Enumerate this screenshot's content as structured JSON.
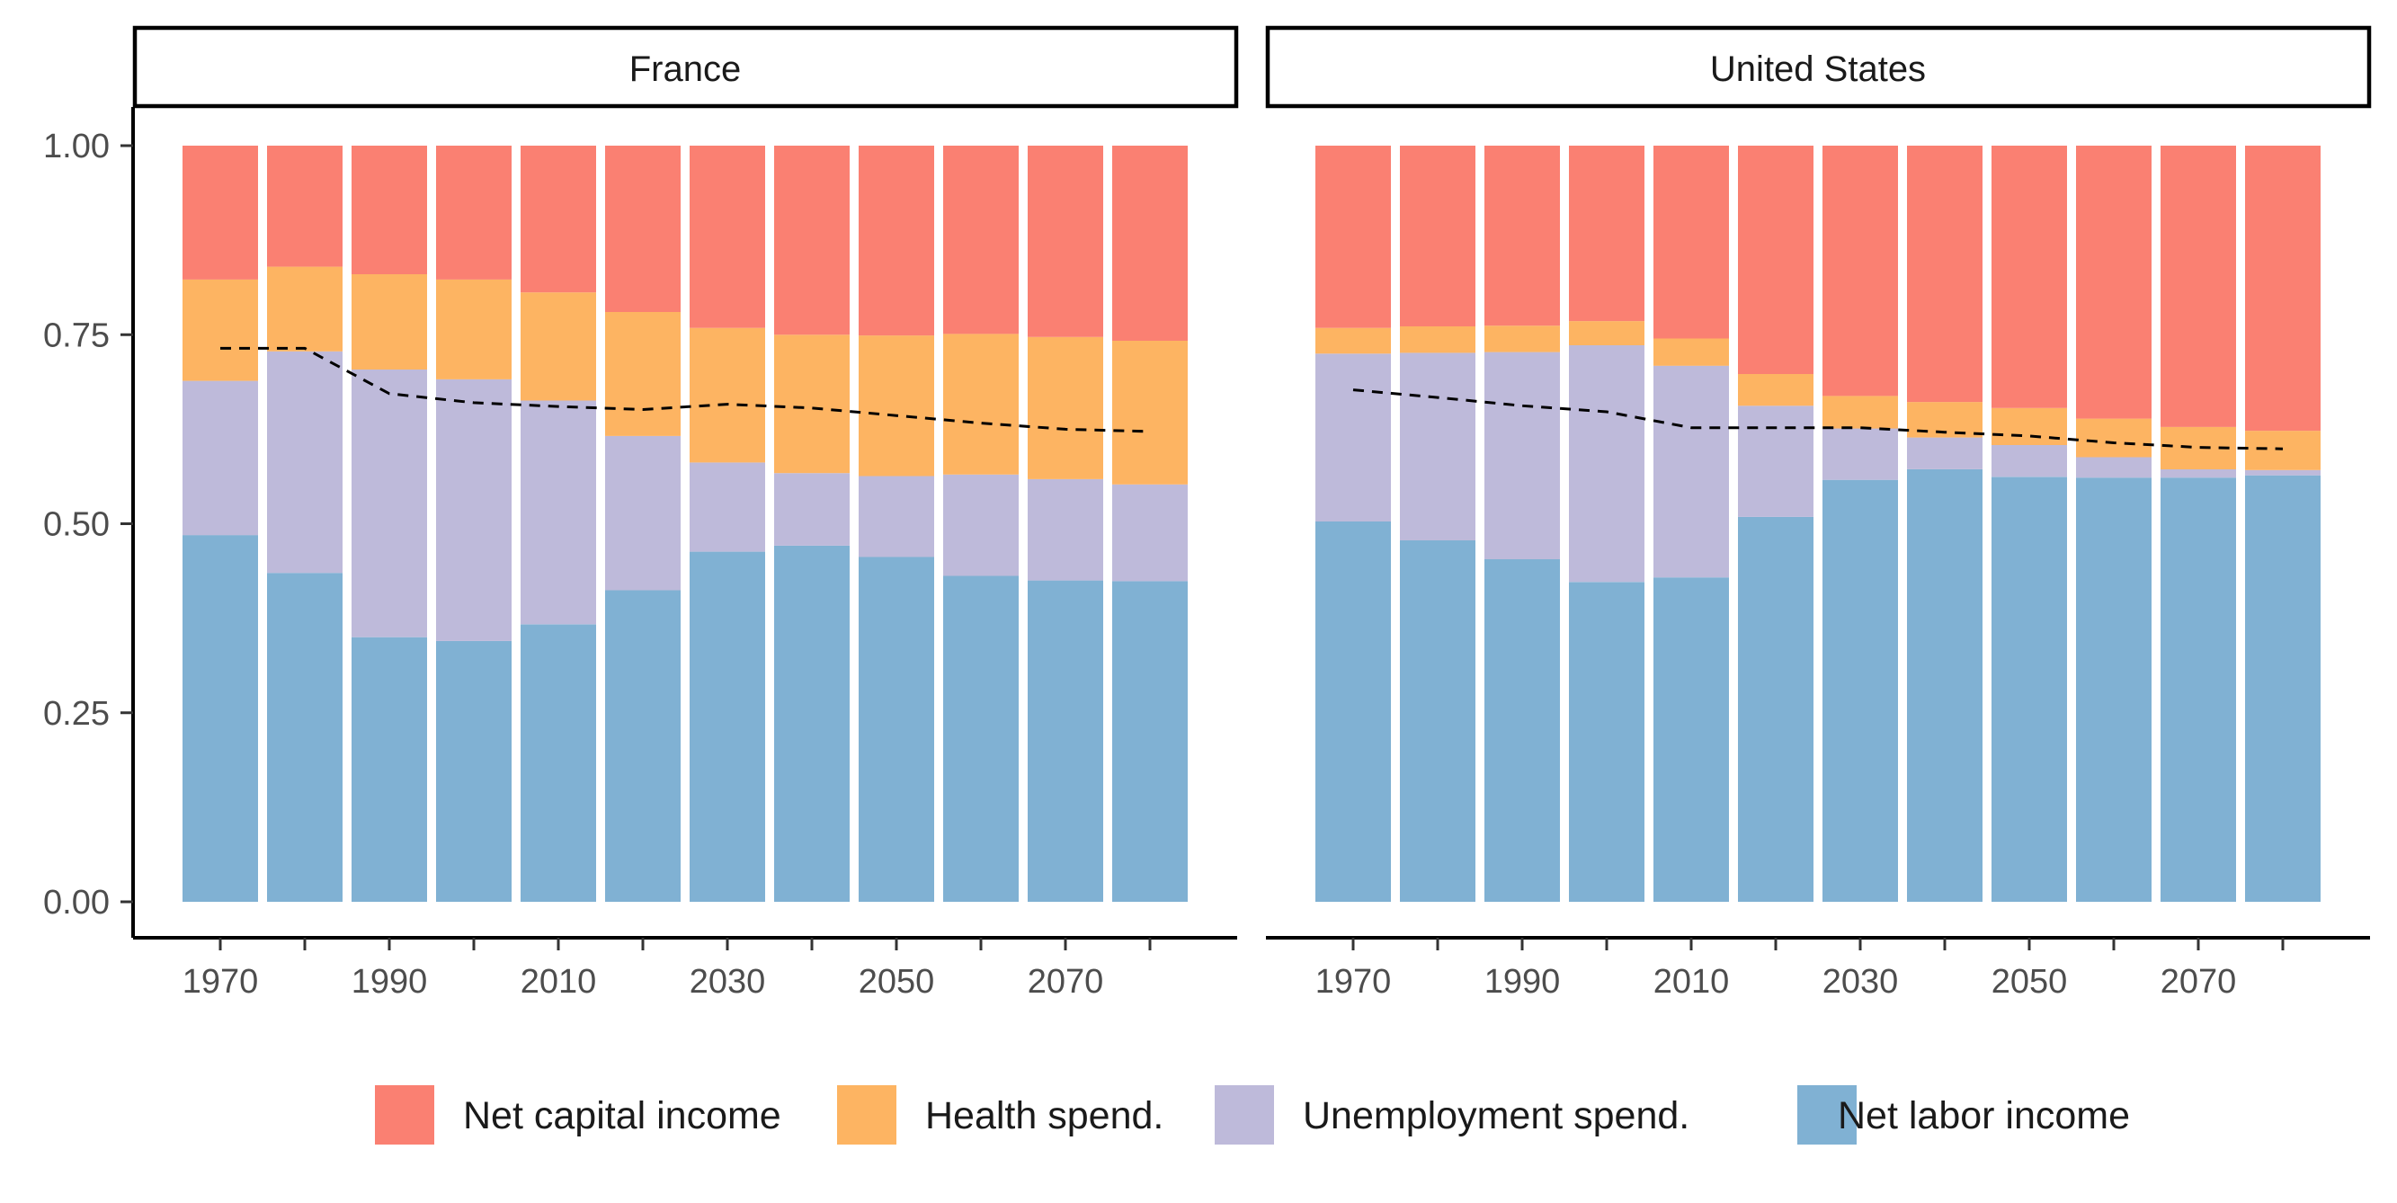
{
  "chart_data": {
    "type": "bar",
    "stacked": "fill",
    "ylim": [
      0,
      1
    ],
    "y_ticks": [
      "0.00",
      "0.25",
      "0.50",
      "0.75",
      "1.00"
    ],
    "y_tick_values": [
      0,
      0.25,
      0.5,
      0.75,
      1.0
    ],
    "x": [
      1970,
      1980,
      1990,
      2000,
      2010,
      2020,
      2030,
      2040,
      2050,
      2060,
      2070,
      2080
    ],
    "x_tick_labels": [
      "1970",
      "1990",
      "2010",
      "2030",
      "2050",
      "2070"
    ],
    "x_tick_label_values": [
      1970,
      1990,
      2010,
      2030,
      2050,
      2070
    ],
    "grid": false,
    "legend_position": "bottom",
    "series": [
      {
        "key": "capital",
        "name": "Net capital income",
        "color": "#FA8072"
      },
      {
        "key": "health",
        "name": "Health spend.",
        "color": "#FDB462"
      },
      {
        "key": "unemployment",
        "name": "Unemployment spend.",
        "color": "#BEBADA"
      },
      {
        "key": "labor",
        "name": "Net labor income",
        "color": "#80B1D3"
      }
    ],
    "panels": [
      {
        "title": "France",
        "labor": [
          0.485,
          0.435,
          0.35,
          0.345,
          0.367,
          0.412,
          0.463,
          0.471,
          0.456,
          0.431,
          0.425,
          0.424
        ],
        "unemployment": [
          0.204,
          0.293,
          0.354,
          0.346,
          0.296,
          0.204,
          0.118,
          0.096,
          0.107,
          0.134,
          0.134,
          0.128
        ],
        "health": [
          0.134,
          0.112,
          0.126,
          0.132,
          0.143,
          0.164,
          0.178,
          0.183,
          0.186,
          0.186,
          0.188,
          0.19
        ],
        "capital": [
          0.177,
          0.16,
          0.17,
          0.177,
          0.194,
          0.22,
          0.241,
          0.25,
          0.251,
          0.249,
          0.253,
          0.258
        ],
        "dashed_line": [
          0.732,
          0.732,
          0.672,
          0.66,
          0.655,
          0.651,
          0.658,
          0.653,
          0.643,
          0.633,
          0.625,
          0.622
        ]
      },
      {
        "title": "United States",
        "labor": [
          0.503,
          0.478,
          0.453,
          0.423,
          0.429,
          0.509,
          0.558,
          0.572,
          0.562,
          0.561,
          0.561,
          0.564
        ],
        "unemployment": [
          0.222,
          0.248,
          0.274,
          0.313,
          0.28,
          0.147,
          0.068,
          0.042,
          0.042,
          0.027,
          0.011,
          0.007
        ],
        "health": [
          0.034,
          0.035,
          0.035,
          0.032,
          0.036,
          0.042,
          0.043,
          0.047,
          0.049,
          0.051,
          0.056,
          0.052
        ],
        "capital": [
          0.241,
          0.239,
          0.238,
          0.232,
          0.255,
          0.302,
          0.331,
          0.339,
          0.347,
          0.361,
          0.372,
          0.377
        ],
        "dashed_line": [
          0.677,
          0.667,
          0.656,
          0.648,
          0.627,
          0.627,
          0.627,
          0.621,
          0.616,
          0.607,
          0.601,
          0.599
        ]
      }
    ]
  }
}
